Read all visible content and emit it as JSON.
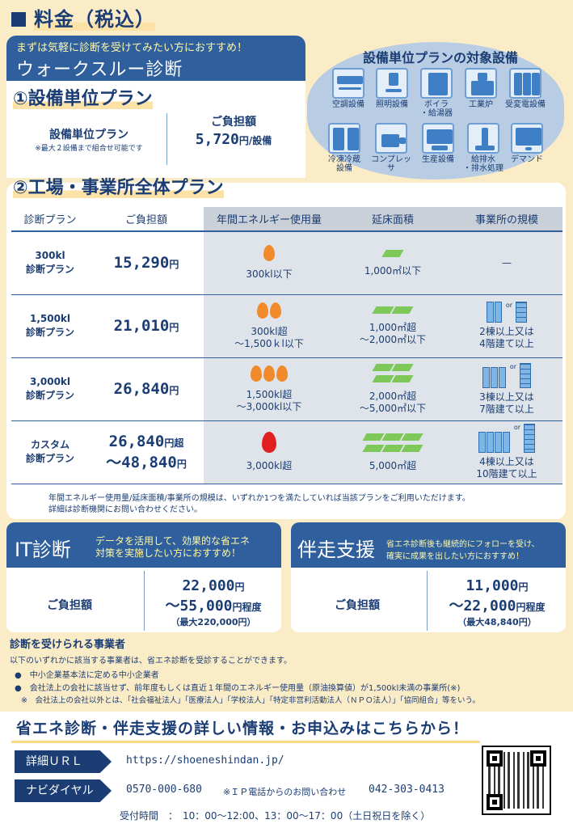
{
  "header": {
    "title": "料金（税込）"
  },
  "walkthrough": {
    "subtitle": "まずは気軽に診断を受けてみたい方におすすめ！",
    "title": "ウォークスルー診断",
    "plan1": {
      "heading": "①設備単位プラン",
      "name": "設備単位プラン",
      "note": "※最大２設備まで組合せ可能です",
      "price_label": "ご負担額",
      "price": "5,720",
      "price_unit": "円/設備"
    },
    "plan2_heading": "②工場・事業所全体プラン"
  },
  "equipment": {
    "title": "設備単位プランの対象設備",
    "items": [
      "空調設備",
      "照明設備",
      "ボイラ\n・給湯器",
      "工業炉",
      "受変電設備",
      "冷凍冷蔵\n設備",
      "コンプレッサ",
      "生産設備",
      "給排水\n・排水処理",
      "デマンド"
    ],
    "icons": [
      "air-conditioner-icon",
      "lighting-icon",
      "boiler-icon",
      "furnace-icon",
      "substation-icon",
      "refrigerator-icon",
      "compressor-icon",
      "production-icon",
      "water-icon",
      "demand-icon"
    ]
  },
  "table": {
    "headers": [
      "診断プラン",
      "ご負担額",
      "年間エネルギー使用量",
      "延床面積",
      "事業所の規模"
    ],
    "rows": [
      {
        "plan": "300kl\n診断プラン",
        "price1": "15,290",
        "unit1": "円",
        "price2": "",
        "unit2": "",
        "energy": "300kl以下",
        "area": "1,000㎡以下",
        "scale": "—",
        "flames": 1,
        "area_tiles": 1,
        "buildings": 0
      },
      {
        "plan": "1,500kl\n診断プラン",
        "price1": "21,010",
        "unit1": "円",
        "price2": "",
        "unit2": "",
        "energy": "300kl超\n～1,500ｋl以下",
        "area": "1,000㎡超\n～2,000㎡以下",
        "scale": "2棟以上又は\n4階建て以上",
        "flames": 2,
        "area_tiles": 2,
        "buildings": 2
      },
      {
        "plan": "3,000kl\n診断プラン",
        "price1": "26,840",
        "unit1": "円",
        "price2": "",
        "unit2": "",
        "energy": "1,500kl超\n～3,000kl以下",
        "area": "2,000㎡超\n～5,000㎡以下",
        "scale": "3棟以上又は\n7階建て以上",
        "flames": 3,
        "area_tiles": 4,
        "buildings": 3
      },
      {
        "plan": "カスタム\n診断プラン",
        "price1": "26,840",
        "unit1": "円超",
        "price2": "～48,840",
        "unit2": "円",
        "energy": "3,000kl超",
        "area": "5,000㎡超",
        "scale": "4棟以上又は\n10階建て以上",
        "flames": 1,
        "area_tiles": 6,
        "buildings": 4
      }
    ],
    "or_label": "or",
    "note": "年間エネルギー使用量/延床面積/事業所の規模は、いずれか1つを満たしていれば当該プランをご利用いただけます。\n詳細は診断機関にお問い合わせください。"
  },
  "it": {
    "title": "IT診断",
    "subtitle": "データを活用して、効果的な省エネ\n対策を実施したい方におすすめ！",
    "price_label": "ご負担額",
    "price1": "22,000",
    "unit1": "円",
    "price2": "～55,000",
    "unit2": "円程度",
    "max": "（最大220,000円）"
  },
  "support": {
    "title": "伴走支援",
    "subtitle": "省エネ診断後も継続的にフォローを受け、\n確実に成果を出したい方におすすめ！",
    "price_label": "ご負担額",
    "price1": "11,000",
    "unit1": "円",
    "price2": "～22,000",
    "unit2": "円程度",
    "max": "（最大48,840円）"
  },
  "eligibility": {
    "title": "診断を受けられる事業者",
    "intro": "以下のいずれかに該当する事業者は、省エネ診断を受診することができます。",
    "items": [
      "中小企業基本法に定める中小企業者",
      "会社法上の会社に該当せず、前年度もしくは直近１年間のエネルギー使用量（原油換算値）が1,500kl未満の事業所(※)"
    ],
    "note": "※　会社法上の会社以外とは、「社会福祉法人」「医療法人」「学校法人」「特定非営利活動法人（ＮＰＯ法人）」「協同組合」等をいう。"
  },
  "cta": {
    "heading": "省エネ診断・伴走支援の詳しい情報・お申込みはこちらから！",
    "url_label": "詳細ＵＲＬ",
    "url": "https://shoeneshindan.jp/",
    "dial_label": "ナビダイヤル",
    "dial": "0570-000-680",
    "ip_note": "※ＩＰ電話からのお問い合わせ",
    "ip_number": "042-303-0413",
    "hours": "受付時間　：　10：00～12:00、13：00～17：00（土日祝日を除く）"
  },
  "colors": {
    "navy": "#1b3d73",
    "blue": "#2f5f9c",
    "cream": "#fbecc8",
    "yellow_text": "#fff8a8",
    "flame": "#f08a2a",
    "flame_red": "#e02020",
    "area_green": "#7ec85a"
  }
}
